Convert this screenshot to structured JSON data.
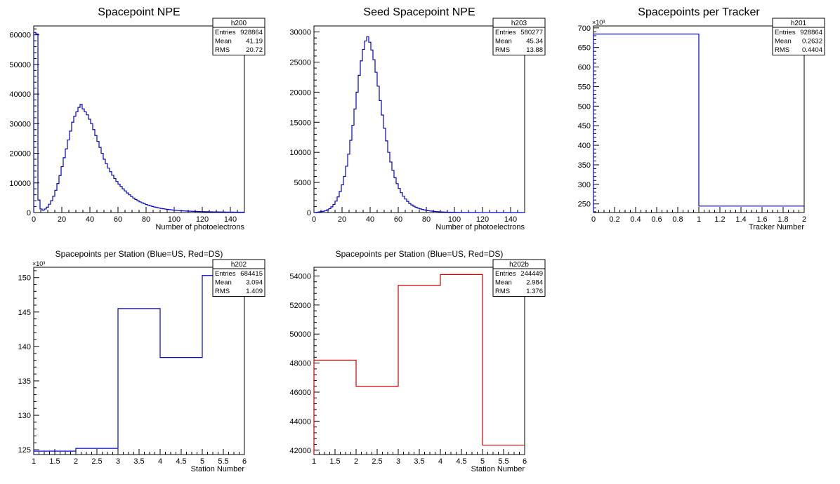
{
  "chart_data": [
    {
      "id": "h200",
      "type": "histogram",
      "title": "Spacepoint NPE",
      "xlabel": "Number of photoelectrons",
      "ylabel": "",
      "xlim": [
        0,
        150
      ],
      "ylim": [
        0,
        63000
      ],
      "xticks": [
        0,
        20,
        40,
        60,
        80,
        100,
        120,
        140
      ],
      "yticks": [
        0,
        10000,
        20000,
        30000,
        40000,
        50000,
        60000
      ],
      "y_exponent": "",
      "line_color": "#0000cc",
      "bin_width": 1.5,
      "values": [
        60800,
        60300,
        4200,
        1200,
        800,
        1200,
        1800,
        2800,
        4000,
        5500,
        7500,
        9800,
        12500,
        15500,
        18500,
        21500,
        24500,
        27500,
        30500,
        32500,
        34000,
        35500,
        36500,
        35000,
        34000,
        33000,
        31500,
        30000,
        28000,
        26000,
        24000,
        22000,
        20000,
        18000,
        16500,
        15000,
        13800,
        12600,
        11500,
        10500,
        9600,
        8800,
        8000,
        7300,
        6600,
        6000,
        5400,
        4900,
        4400,
        4000,
        3600,
        3300,
        3000,
        2700,
        2500,
        2250,
        2050,
        1850,
        1700,
        1550,
        1400,
        1280,
        1170,
        1070,
        980,
        900,
        820,
        760,
        700,
        640,
        590,
        550,
        510,
        470,
        440,
        410,
        380,
        350,
        330,
        310,
        290,
        270,
        260,
        240,
        230,
        220,
        210,
        200,
        190,
        180,
        170,
        160,
        150,
        145,
        140,
        135,
        130,
        125,
        120,
        115
      ],
      "stats": {
        "name": "h200",
        "rows": [
          [
            "Entries",
            "928864"
          ],
          [
            "Mean",
            "41.19"
          ],
          [
            "RMS",
            "20.72"
          ]
        ]
      }
    },
    {
      "id": "h203",
      "type": "histogram",
      "title": "Seed Spacepoint NPE",
      "xlabel": "Number of photoelectrons",
      "ylabel": "",
      "xlim": [
        0,
        150
      ],
      "ylim": [
        0,
        31000
      ],
      "xticks": [
        0,
        20,
        40,
        60,
        80,
        100,
        120,
        140
      ],
      "yticks": [
        0,
        5000,
        10000,
        15000,
        20000,
        25000,
        30000
      ],
      "y_exponent": "",
      "line_color": "#0000cc",
      "bin_width": 1.5,
      "values": [
        0,
        50,
        100,
        150,
        200,
        300,
        450,
        650,
        950,
        1350,
        1900,
        2600,
        3500,
        4600,
        6000,
        7700,
        9700,
        12000,
        14500,
        17200,
        20000,
        22800,
        25200,
        27100,
        28500,
        29200,
        28300,
        27000,
        25400,
        23300,
        21000,
        18600,
        16200,
        14000,
        11900,
        10000,
        8400,
        7000,
        5800,
        4800,
        4000,
        3300,
        2700,
        2250,
        1850,
        1500,
        1250,
        1050,
        880,
        730,
        610,
        510,
        430,
        360,
        300,
        255,
        215,
        180,
        150,
        125,
        105,
        90,
        75,
        65,
        55,
        45,
        40,
        35,
        30,
        25,
        22,
        20,
        18,
        16,
        14,
        12,
        11,
        10,
        9,
        8,
        7,
        6,
        5,
        5,
        4,
        4,
        3,
        3,
        3,
        2,
        2,
        2,
        2,
        1,
        1,
        1,
        1,
        1,
        1,
        0
      ],
      "stats": {
        "name": "h203",
        "rows": [
          [
            "Entries",
            "580277"
          ],
          [
            "Mean",
            "45.34"
          ],
          [
            "RMS",
            "13.88"
          ]
        ]
      }
    },
    {
      "id": "h201",
      "type": "histogram",
      "title": "Spacepoints per Tracker",
      "xlabel": "Tracker Number",
      "ylabel": "",
      "xlim": [
        0,
        2
      ],
      "ylim": [
        228,
        705
      ],
      "xticks": [
        0,
        0.2,
        0.4,
        0.6,
        0.8,
        1,
        1.2,
        1.4,
        1.6,
        1.8,
        2
      ],
      "yticks": [
        250,
        300,
        350,
        400,
        450,
        500,
        550,
        600,
        650,
        700
      ],
      "y_exponent": "×10³",
      "line_color": "#0000cc",
      "bin_width": 1,
      "values": [
        684.415,
        244.449
      ],
      "stats": {
        "name": "h201",
        "rows": [
          [
            "Entries",
            "928864"
          ],
          [
            "Mean",
            "0.2632"
          ],
          [
            "RMS",
            "0.4404"
          ]
        ]
      }
    },
    {
      "id": "h202",
      "type": "histogram",
      "title": "Spacepoints per Station (Blue=US, Red=DS)",
      "xlabel": "Station Number",
      "ylabel": "",
      "xlim": [
        1,
        6
      ],
      "ylim": [
        124.3,
        151.5
      ],
      "xticks": [
        1,
        1.5,
        2,
        2.5,
        3,
        3.5,
        4,
        4.5,
        5,
        5.5,
        6
      ],
      "yticks": [
        125,
        130,
        135,
        140,
        145,
        150
      ],
      "y_exponent": "×10³",
      "line_color": "#0000cc",
      "bin_width": 1,
      "values": [
        124.8,
        125.2,
        145.5,
        138.4,
        150.3
      ],
      "stats": {
        "name": "h202",
        "rows": [
          [
            "Entries",
            "684415"
          ],
          [
            "Mean",
            "3.094"
          ],
          [
            "RMS",
            "1.409"
          ]
        ]
      }
    },
    {
      "id": "h202b",
      "type": "histogram",
      "title": "Spacepoints per Station (Blue=US, Red=DS)",
      "xlabel": "Station Number",
      "ylabel": "",
      "xlim": [
        1,
        6
      ],
      "ylim": [
        41700,
        54600
      ],
      "xticks": [
        1,
        1.5,
        2,
        2.5,
        3,
        3.5,
        4,
        4.5,
        5,
        5.5,
        6
      ],
      "yticks": [
        42000,
        44000,
        46000,
        48000,
        50000,
        52000,
        54000
      ],
      "y_exponent": "",
      "line_color": "#cc0000",
      "bin_width": 1,
      "values": [
        48200,
        46400,
        53350,
        54100,
        42350
      ],
      "stats": {
        "name": "h202b",
        "rows": [
          [
            "Entries",
            "244449"
          ],
          [
            "Mean",
            "2.984"
          ],
          [
            "RMS",
            "1.376"
          ]
        ]
      }
    }
  ]
}
